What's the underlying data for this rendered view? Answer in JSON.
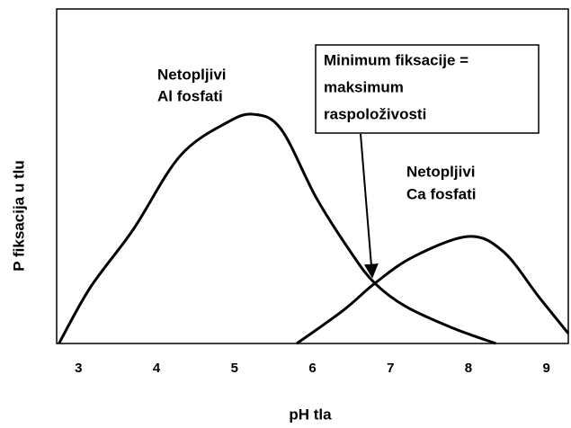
{
  "chart_data": {
    "type": "line",
    "x_label": "pH tla",
    "y_label": "P fiksacija u tlu",
    "xlim": [
      2.72,
      9.28
    ],
    "ylim": [
      0,
      100
    ],
    "xticks": [
      3,
      4,
      5,
      6,
      7,
      8,
      9
    ],
    "series": [
      {
        "color": "#000000",
        "x": [
          2.75,
          3.15,
          3.7,
          4.3,
          4.9,
          5.25,
          5.6,
          6.05,
          6.5,
          6.8,
          7.2,
          7.8,
          8.35
        ],
        "values": [
          0,
          16.7,
          34,
          56,
          66,
          68.5,
          64,
          43.5,
          27,
          18,
          11,
          4.6,
          0
        ]
      },
      {
        "color": "#000000",
        "x": [
          5.8,
          6.4,
          6.8,
          7.3,
          8.0,
          8.45,
          8.9,
          9.28
        ],
        "values": [
          0,
          10,
          18,
          26,
          32,
          27.4,
          14,
          3
        ]
      }
    ],
    "annotations": [
      [
        "Netopljivi",
        "Al fosfati"
      ],
      [
        "Netopljivi",
        "Ca fosfati"
      ],
      [
        "Minimum fiksacije =",
        "maksimum",
        "raspoloživosti"
      ]
    ]
  }
}
